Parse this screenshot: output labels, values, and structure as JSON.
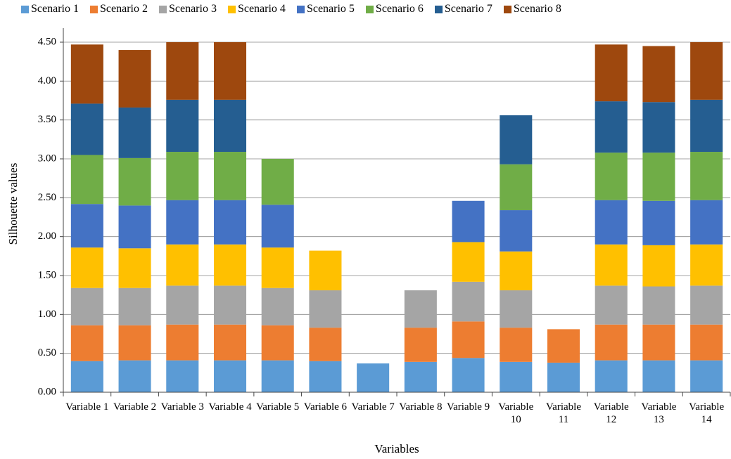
{
  "chart_data": {
    "type": "bar",
    "stacked": true,
    "x_label": "Variables",
    "y_label": "Silhouette values",
    "categories": [
      "Variable 1",
      "Variable 2",
      "Variable 3",
      "Variable 4",
      "Variable 5",
      "Variable 6",
      "Variable 7",
      "Variable 8",
      "Variable 9",
      "Variable 10",
      "Variable 11",
      "Variable 12",
      "Variable 13",
      "Variable 14"
    ],
    "ylim": [
      0,
      4.5
    ],
    "yticks": [
      {
        "value": 0,
        "label": "0.00"
      },
      {
        "value": 0.5,
        "label": "0.50"
      },
      {
        "value": 1,
        "label": "1.00"
      },
      {
        "value": 1.5,
        "label": "1.50"
      },
      {
        "value": 2,
        "label": "2.00"
      },
      {
        "value": 2.5,
        "label": "2.50"
      },
      {
        "value": 3,
        "label": "3.00"
      },
      {
        "value": 3.5,
        "label": "3.50"
      },
      {
        "value": 4,
        "label": "4.00"
      },
      {
        "value": 4.5,
        "label": "4.50"
      }
    ],
    "grid": true,
    "legend": "top",
    "series": [
      {
        "name": "Scenario 1",
        "color": "#5b9bd5",
        "values": [
          0.4,
          0.41,
          0.41,
          0.41,
          0.41,
          0.4,
          0.37,
          0.39,
          0.44,
          0.39,
          0.38,
          0.41,
          0.41,
          0.41
        ]
      },
      {
        "name": "Scenario 2",
        "color": "#ed7d31",
        "values": [
          0.46,
          0.45,
          0.46,
          0.46,
          0.45,
          0.43,
          null,
          0.44,
          0.47,
          0.44,
          0.43,
          0.46,
          0.46,
          0.46
        ]
      },
      {
        "name": "Scenario 3",
        "color": "#a5a5a5",
        "values": [
          0.48,
          0.48,
          0.5,
          0.5,
          0.48,
          0.48,
          null,
          0.48,
          0.51,
          0.48,
          null,
          0.5,
          0.49,
          0.5
        ]
      },
      {
        "name": "Scenario 4",
        "color": "#ffc000",
        "values": [
          0.52,
          0.51,
          0.53,
          0.53,
          0.52,
          0.51,
          null,
          null,
          0.51,
          0.5,
          null,
          0.53,
          0.53,
          0.53
        ]
      },
      {
        "name": "Scenario 5",
        "color": "#4472c4",
        "values": [
          0.56,
          0.55,
          0.57,
          0.57,
          0.55,
          null,
          null,
          null,
          0.53,
          0.53,
          null,
          0.57,
          0.57,
          0.57
        ]
      },
      {
        "name": "Scenario 6",
        "color": "#70ad47",
        "values": [
          0.63,
          0.61,
          0.62,
          0.62,
          0.59,
          null,
          null,
          null,
          null,
          0.59,
          null,
          0.61,
          0.62,
          0.62
        ]
      },
      {
        "name": "Scenario 7",
        "color": "#255e91",
        "values": [
          0.66,
          0.65,
          0.67,
          0.67,
          null,
          null,
          null,
          null,
          null,
          0.63,
          null,
          0.66,
          0.65,
          0.67
        ]
      },
      {
        "name": "Scenario 8",
        "color": "#9e480e",
        "values": [
          0.76,
          0.74,
          0.74,
          0.74,
          null,
          null,
          null,
          null,
          null,
          null,
          null,
          0.73,
          0.72,
          0.74
        ]
      }
    ]
  }
}
